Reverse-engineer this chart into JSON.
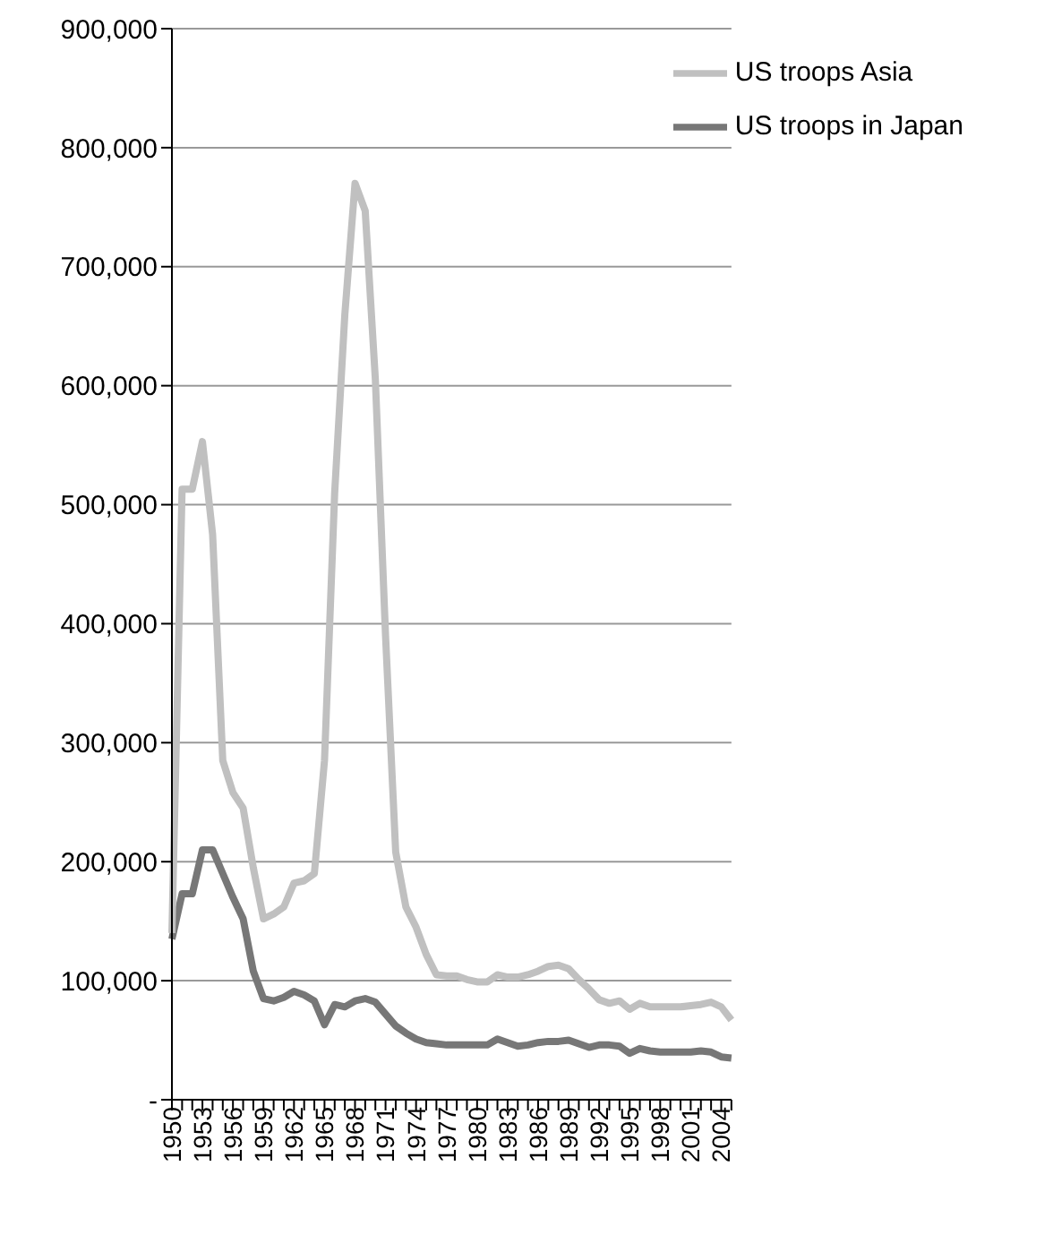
{
  "chart_data": {
    "type": "line",
    "categories": [
      "1950",
      null,
      null,
      "1953",
      null,
      null,
      "1956",
      null,
      null,
      "1959",
      null,
      null,
      "1962",
      null,
      null,
      "1965",
      null,
      null,
      "1968",
      null,
      null,
      "1971",
      null,
      null,
      "1974",
      null,
      null,
      "1977",
      null,
      null,
      "1980",
      null,
      null,
      "1983",
      null,
      null,
      "1986",
      null,
      null,
      "1989",
      null,
      null,
      "1992",
      null,
      null,
      "1995",
      null,
      null,
      "1998",
      null,
      null,
      "2001",
      null,
      null,
      "2004",
      null
    ],
    "series": [
      {
        "name": "US troops in Japan",
        "color": "#777777",
        "values": [
          135000,
          173000,
          173000,
          210000,
          210000,
          190000,
          170000,
          152000,
          108000,
          85000,
          83000,
          86000,
          91000,
          88000,
          83000,
          63000,
          80000,
          78000,
          83000,
          85000,
          82000,
          72000,
          62000,
          56000,
          51000,
          48000,
          47000,
          46000,
          46000,
          46000,
          46000,
          46000,
          51000,
          48000,
          45000,
          46000,
          48000,
          49000,
          49000,
          50000,
          47000,
          44000,
          46000,
          46000,
          45000,
          39000,
          43000,
          41000,
          40000,
          40000,
          40000,
          40000,
          41000,
          40000,
          36000,
          35000
        ]
      },
      {
        "name": "US troops Asia",
        "color": "#c0c0c0",
        "values": [
          140000,
          513000,
          513000,
          553000,
          475000,
          285000,
          258000,
          245000,
          195000,
          152000,
          156000,
          162000,
          182000,
          184000,
          190000,
          285000,
          510000,
          660000,
          770000,
          747000,
          605000,
          390000,
          208000,
          162000,
          145000,
          122000,
          105000,
          104000,
          104000,
          101000,
          99000,
          99000,
          105000,
          103000,
          103000,
          105000,
          108000,
          112000,
          113000,
          110000,
          101000,
          93000,
          84000,
          81000,
          83000,
          76000,
          81000,
          78000,
          78000,
          78000,
          78000,
          79000,
          80000,
          82000,
          78000,
          67000
        ]
      }
    ],
    "ylim": [
      0,
      900000
    ],
    "yticks": [
      {
        "value": 0,
        "label": "-"
      },
      {
        "value": 100000,
        "label": "100,000"
      },
      {
        "value": 200000,
        "label": "200,000"
      },
      {
        "value": 300000,
        "label": "300,000"
      },
      {
        "value": 400000,
        "label": "400,000"
      },
      {
        "value": 500000,
        "label": "500,000"
      },
      {
        "value": 600000,
        "label": "600,000"
      },
      {
        "value": 700000,
        "label": "700,000"
      },
      {
        "value": 800000,
        "label": "800,000"
      },
      {
        "value": 900000,
        "label": "900,000"
      }
    ],
    "grid": "y",
    "legend": "top right",
    "marker": "none",
    "line_style": "solid"
  }
}
